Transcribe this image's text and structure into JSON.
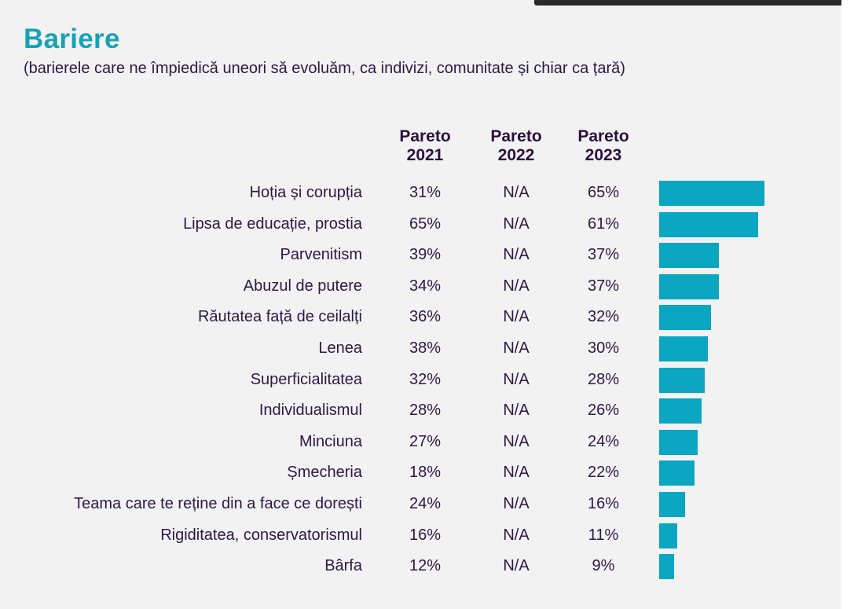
{
  "title": "Bariere",
  "subtitle": "(barierele care ne împiedică uneori să evoluăm, ca indivizi, comunitate și chiar ca țară)",
  "colors": {
    "title": "#17a2b8",
    "bar": "#0aa6c2",
    "text": "#2a1a45"
  },
  "chart_data": {
    "type": "bar",
    "orientation": "horizontal",
    "columns": [
      {
        "line1": "Pareto",
        "line2": "2021"
      },
      {
        "line1": "Pareto",
        "line2": "2022"
      },
      {
        "line1": "Pareto",
        "line2": "2023"
      }
    ],
    "categories": [
      "Hoția și corupția",
      "Lipsa de educație, prostia",
      "Parvenitism",
      "Abuzul de putere",
      "Răutatea față de ceilalți",
      "Lenea",
      "Superficialitatea",
      "Individualismul",
      "Minciuna",
      "Șmecheria",
      "Teama care te reține din a face ce dorești",
      "Rigiditatea, conservatorismul",
      "Bârfa"
    ],
    "series": [
      {
        "values": [
          "31%",
          "65%",
          "39%",
          "34%",
          "36%",
          "38%",
          "32%",
          "28%",
          "27%",
          "18%",
          "24%",
          "16%",
          "12%"
        ]
      },
      {
        "values": [
          "N/A",
          "N/A",
          "N/A",
          "N/A",
          "N/A",
          "N/A",
          "N/A",
          "N/A",
          "N/A",
          "N/A",
          "N/A",
          "N/A",
          "N/A"
        ]
      },
      {
        "values": [
          "65%",
          "61%",
          "37%",
          "37%",
          "32%",
          "30%",
          "28%",
          "26%",
          "24%",
          "22%",
          "16%",
          "11%",
          "9%"
        ]
      }
    ],
    "bar_values": [
      65,
      61,
      37,
      37,
      32,
      30,
      28,
      26,
      24,
      22,
      16,
      11,
      9
    ],
    "bar_series_index": 2,
    "xlim": [
      0,
      65
    ]
  }
}
